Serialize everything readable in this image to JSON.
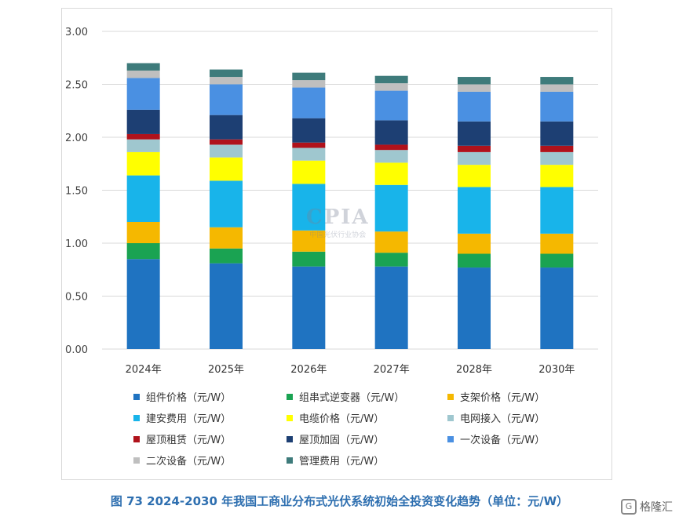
{
  "chart_data": {
    "type": "bar",
    "stacked": true,
    "categories": [
      "2024年",
      "2025年",
      "2026年",
      "2027年",
      "2028年",
      "2030年"
    ],
    "ylim": [
      0,
      3.0
    ],
    "yticks": [
      "0.00",
      "0.50",
      "1.00",
      "1.50",
      "2.00",
      "2.50",
      "3.00"
    ],
    "grid": true,
    "legend_placement": "bottom",
    "series": [
      {
        "name": "组件价格（元/W）",
        "color": "#1f73c1",
        "values": [
          0.85,
          0.81,
          0.78,
          0.78,
          0.77,
          0.77
        ]
      },
      {
        "name": "组串式逆变器（元/W）",
        "color": "#1aa352",
        "values": [
          0.15,
          0.14,
          0.14,
          0.13,
          0.13,
          0.13
        ]
      },
      {
        "name": "支架价格（元/W）",
        "color": "#f5b800",
        "values": [
          0.2,
          0.2,
          0.2,
          0.2,
          0.19,
          0.19
        ]
      },
      {
        "name": "建安费用（元/W）",
        "color": "#18b4ea",
        "values": [
          0.44,
          0.44,
          0.44,
          0.44,
          0.44,
          0.44
        ]
      },
      {
        "name": "电缆价格（元/W）",
        "color": "#ffff00",
        "values": [
          0.22,
          0.22,
          0.22,
          0.21,
          0.21,
          0.21
        ]
      },
      {
        "name": "电网接入（元/W）",
        "color": "#9fc7cf",
        "values": [
          0.12,
          0.12,
          0.12,
          0.12,
          0.12,
          0.12
        ]
      },
      {
        "name": "屋顶租赁（元/W）",
        "color": "#b0121b",
        "values": [
          0.05,
          0.05,
          0.05,
          0.05,
          0.06,
          0.06
        ]
      },
      {
        "name": "屋顶加固（元/W）",
        "color": "#1d3f73",
        "values": [
          0.23,
          0.23,
          0.23,
          0.23,
          0.23,
          0.23
        ]
      },
      {
        "name": "一次设备（元/W）",
        "color": "#4a90e2",
        "values": [
          0.3,
          0.29,
          0.29,
          0.28,
          0.28,
          0.28
        ]
      },
      {
        "name": "二次设备（元/W）",
        "color": "#bfbfbf",
        "values": [
          0.07,
          0.07,
          0.07,
          0.07,
          0.07,
          0.07
        ]
      },
      {
        "name": "管理费用（元/W）",
        "color": "#3e7b7b",
        "values": [
          0.07,
          0.07,
          0.07,
          0.07,
          0.07,
          0.07
        ]
      }
    ]
  },
  "caption": "图 73    2024-2030 年我国工商业分布式光伏系统初始全投资变化趋势（单位：元/W）",
  "watermark": {
    "big": "CPIA",
    "small": "中国光伏行业协会"
  },
  "logo_text": "格隆汇"
}
